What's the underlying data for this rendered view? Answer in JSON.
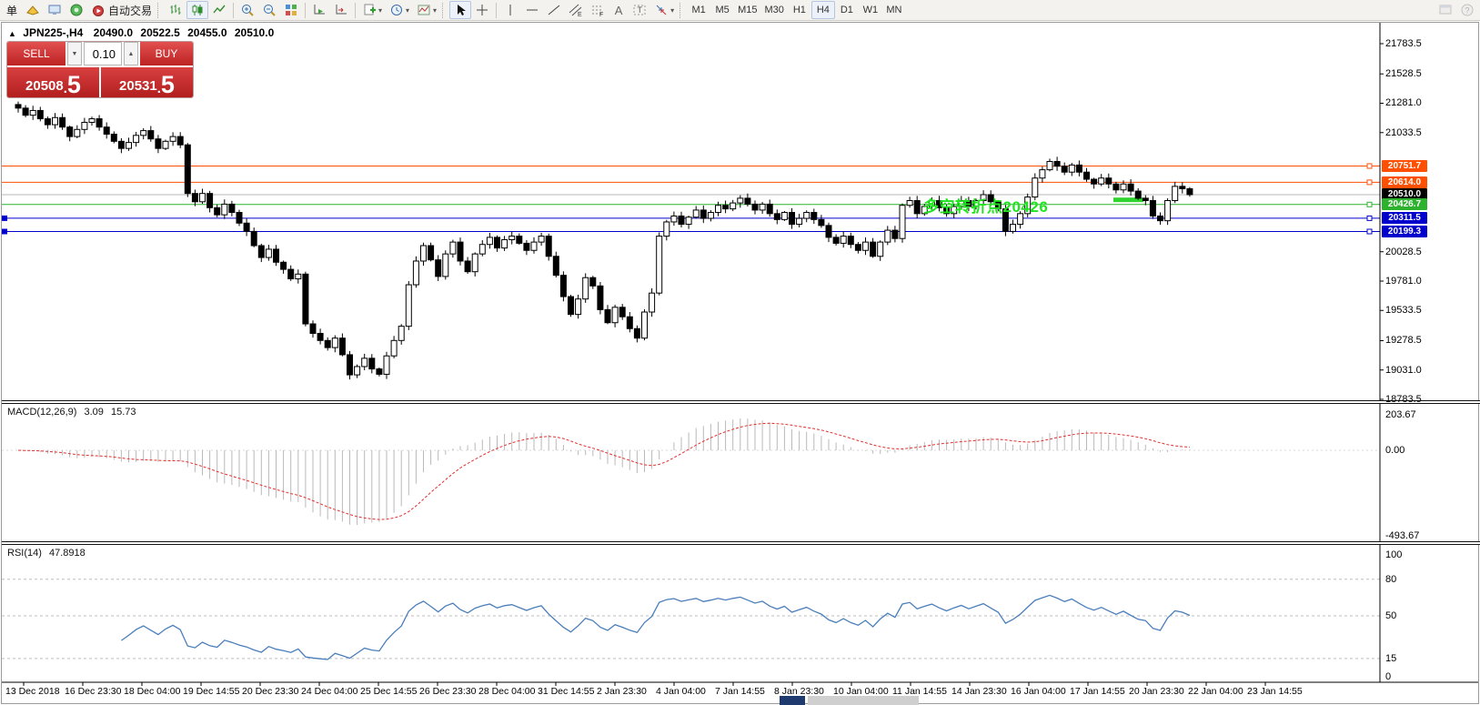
{
  "toolbar": {
    "new_order_label": "单",
    "autotrading_label": "自动交易",
    "timeframes": [
      {
        "label": "M1",
        "active": false
      },
      {
        "label": "M5",
        "active": false
      },
      {
        "label": "M15",
        "active": false
      },
      {
        "label": "M30",
        "active": false
      },
      {
        "label": "H1",
        "active": false
      },
      {
        "label": "H4",
        "active": true
      },
      {
        "label": "D1",
        "active": false
      },
      {
        "label": "W1",
        "active": false
      },
      {
        "label": "MN",
        "active": false
      }
    ],
    "text_tool_label": "A",
    "label_tool_label": "T"
  },
  "chart": {
    "info": {
      "symbol_period": "JPN225-,H4",
      "open": "20490.0",
      "high": "20522.5",
      "low": "20455.0",
      "close": "20510.0"
    },
    "trade_panel": {
      "sell_label": "SELL",
      "buy_label": "BUY",
      "volume": "0.10",
      "sell_price_int": "20508",
      "sell_price_frac": "5",
      "buy_price_int": "20531",
      "buy_price_frac": "5"
    },
    "annotation": {
      "text": "多空转折点20426",
      "color": "#21e421"
    },
    "hlines": [
      {
        "price": 20751.7,
        "label": "20751.7",
        "color": "#ff4f00",
        "tag_bg": "#ff4f00",
        "marker_right": true,
        "marker_left": false,
        "current": false
      },
      {
        "price": 20614.0,
        "label": "20614.0",
        "color": "#ff4f00",
        "tag_bg": "#ff4f00",
        "marker_right": true,
        "marker_left": false,
        "current": false
      },
      {
        "price": 20510.0,
        "label": "20510.0",
        "color": "#b8b8b8",
        "tag_bg": "#000000",
        "marker_right": false,
        "marker_left": false,
        "current": true
      },
      {
        "price": 20426.7,
        "label": "20426.7",
        "color": "#2db22d",
        "tag_bg": "#2db22d",
        "marker_right": true,
        "marker_left": false,
        "current": false
      },
      {
        "price": 20311.5,
        "label": "20311.5",
        "color": "#0000cd",
        "tag_bg": "#0000cd",
        "marker_right": true,
        "marker_left": true,
        "current": false
      },
      {
        "price": 20199.3,
        "label": "20199.3",
        "color": "#0000cd",
        "tag_bg": "#0000cd",
        "marker_right": true,
        "marker_left": true,
        "current": false
      }
    ],
    "price_axis": {
      "ticks": [
        21783.5,
        21528.5,
        21281.0,
        21033.5,
        20028.5,
        19781.0,
        19533.5,
        19278.5,
        19031.0,
        18783.5
      ],
      "max": 21783.5,
      "min": 18783.5
    },
    "time_axis": [
      "13 Dec 2018",
      "16 Dec 23:30",
      "18 Dec 04:00",
      "19 Dec 14:55",
      "20 Dec 23:30",
      "24 Dec 04:00",
      "25 Dec 14:55",
      "26 Dec 23:30",
      "28 Dec 04:00",
      "31 Dec 14:55",
      "2 Jan 23:30",
      "4 Jan 04:00",
      "7 Jan 14:55",
      "8 Jan 23:30",
      "10 Jan 04:00",
      "11 Jan 14:55",
      "14 Jan 23:30",
      "16 Jan 04:00",
      "17 Jan 14:55",
      "20 Jan 23:30",
      "22 Jan 04:00",
      "23 Jan 14:55"
    ]
  },
  "macd": {
    "label": "MACD(12,26,9)",
    "value_main": "3.09",
    "value_signal": "15.73",
    "axis_max": "203.67",
    "axis_zero": "0.00",
    "axis_min": "-493.67",
    "fast": 12,
    "slow": 26,
    "signal": 9,
    "histogram_color": "#b9b9b9",
    "signal_color": "#e03030"
  },
  "rsi": {
    "label": "RSI(14)",
    "value": "47.8918",
    "period": 14,
    "axis_top": "100",
    "axis_bottom": "0",
    "levels": [
      80,
      50,
      15
    ],
    "line_color": "#4a7ebb"
  },
  "chart_data": [
    {
      "type": "candlestick",
      "symbol": "JPN225-",
      "period": "H4",
      "current_ohlc": {
        "open": 20490.0,
        "high": 20522.5,
        "low": 20455.0,
        "close": 20510.0
      },
      "bid": 20508.5,
      "ask": 20531.5,
      "price_range": [
        18783.5,
        21783.5
      ],
      "approx_closes": [
        21240,
        21180,
        21220,
        21150,
        21100,
        21160,
        21080,
        21000,
        21060,
        21120,
        21150,
        21080,
        21020,
        20960,
        20900,
        20950,
        21010,
        21050,
        20980,
        20900,
        20960,
        21000,
        20930,
        20520,
        20450,
        20520,
        20400,
        20340,
        20430,
        20360,
        20270,
        20200,
        20080,
        19980,
        20050,
        19940,
        19880,
        19800,
        19840,
        19420,
        19340,
        19280,
        19220,
        19300,
        19160,
        18990,
        19060,
        19130,
        19040,
        18995,
        19150,
        19280,
        19400,
        19750,
        19950,
        20080,
        19960,
        19820,
        20010,
        20110,
        19950,
        19860,
        20010,
        20090,
        20150,
        20060,
        20130,
        20160,
        20100,
        20040,
        20110,
        20160,
        19990,
        19830,
        19650,
        19500,
        19630,
        19810,
        19740,
        19540,
        19430,
        19560,
        19480,
        19380,
        19300,
        19520,
        19680,
        20160,
        20280,
        20330,
        20260,
        20320,
        20380,
        20310,
        20360,
        20420,
        20390,
        20440,
        20480,
        20430,
        20380,
        20430,
        20350,
        20300,
        20360,
        20260,
        20310,
        20360,
        20300,
        20250,
        20150,
        20100,
        20160,
        20090,
        20040,
        20110,
        19990,
        20110,
        20210,
        20140,
        20420,
        20460,
        20350,
        20410,
        20460,
        20400,
        20350,
        20410,
        20460,
        20410,
        20460,
        20510,
        20450,
        20390,
        20200,
        20260,
        20350,
        20490,
        20650,
        20720,
        20790,
        20750,
        20700,
        20760,
        20700,
        20640,
        20600,
        20650,
        20600,
        20550,
        20600,
        20540,
        20480,
        20460,
        20330,
        20290,
        20460,
        20580,
        20560,
        20510
      ]
    },
    {
      "type": "line",
      "name": "MACD(12,26,9)",
      "shown_values": [
        3.09,
        15.73
      ],
      "axis_ticks": [
        203.67,
        0.0,
        -493.67
      ]
    },
    {
      "type": "line",
      "name": "RSI(14)",
      "shown_value": 47.8918,
      "axis_ticks": [
        100,
        80,
        50,
        15,
        0
      ]
    }
  ]
}
